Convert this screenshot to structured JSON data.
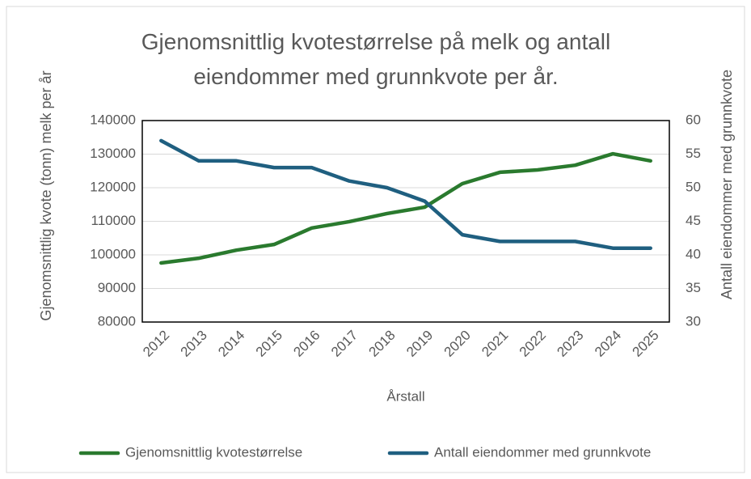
{
  "chart_data": {
    "type": "line",
    "title": "Gjenomsnittlig kvotestørrelse på melk og antall eiendommer med grunnkvote per år.",
    "x_label": "Årstall",
    "y_label": "Gjenomsnittlig kvote (tonn) melk per år",
    "y2_label": "Antall eiendommer med grunnkvote",
    "categories": [
      "2012",
      "2013",
      "2014",
      "2015",
      "2016",
      "2017",
      "2018",
      "2019",
      "2020",
      "2021",
      "2022",
      "2023",
      "2024",
      "2025"
    ],
    "series": [
      {
        "name": "Gjenomsnittlig kvotestørrelse",
        "color": "#2a7a2e",
        "values": [
          97600,
          99000,
          101400,
          103100,
          108000,
          109900,
          112300,
          114200,
          121200,
          124600,
          125300,
          126700,
          130100,
          128000
        ]
      },
      {
        "name": "Antall eiendommer med grunnkvote",
        "color": "#1f5f80",
        "axis": "y2",
        "values": [
          57,
          54,
          54,
          53,
          53,
          51,
          50,
          48,
          43,
          42,
          42,
          42,
          41,
          41
        ]
      }
    ],
    "ylim": [
      80000,
      140000
    ],
    "yticks": [
      80000,
      90000,
      100000,
      110000,
      120000,
      130000,
      140000
    ],
    "y2lim": [
      30,
      60
    ],
    "y2ticks": [
      30,
      35,
      40,
      45,
      50,
      55,
      60
    ],
    "grid": true,
    "legend": "bottom"
  }
}
